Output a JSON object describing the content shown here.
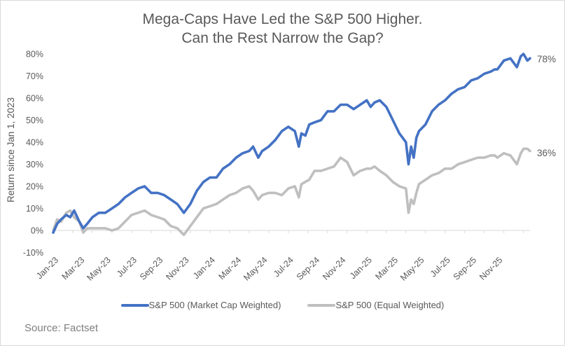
{
  "chart_data": {
    "type": "line",
    "title": [
      "Mega-Caps Have Led the S&P 500 Higher.",
      "Can the Rest Narrow the Gap?"
    ],
    "xlabel": "",
    "ylabel": "Return since Jan 1, 2023",
    "ylim": [
      -10,
      80
    ],
    "yticks": [
      -10,
      0,
      10,
      20,
      30,
      40,
      50,
      60,
      70,
      80
    ],
    "ytick_labels": [
      "-10%",
      "0%",
      "10%",
      "20%",
      "30%",
      "40%",
      "50%",
      "60%",
      "70%",
      "80%"
    ],
    "xlim_months": [
      0,
      36.5
    ],
    "xtick_labels": [
      "Jan-23",
      "Mar-23",
      "May-23",
      "Jul-23",
      "Sep-23",
      "Nov-23",
      "Jan-24",
      "Mar-24",
      "May-24",
      "Jul-24",
      "Sep-24",
      "Nov-24",
      "Jan-25",
      "Mar-25",
      "May-25",
      "Jul-25",
      "Sep-25",
      "Nov-25"
    ],
    "xtick_months": [
      0,
      2,
      4,
      6,
      8,
      10,
      12,
      14,
      16,
      18,
      20,
      22,
      24,
      26,
      28,
      30,
      32,
      34
    ],
    "x_months": [
      0,
      0.3,
      0.6,
      1.0,
      1.3,
      1.6,
      2.0,
      2.3,
      2.6,
      3.0,
      3.5,
      4.0,
      4.5,
      5.0,
      5.5,
      6.0,
      6.5,
      7.0,
      7.5,
      8.0,
      8.5,
      9.0,
      9.5,
      10.0,
      10.5,
      11.0,
      11.5,
      12.0,
      12.5,
      13.0,
      13.5,
      14.0,
      14.5,
      15.0,
      15.3,
      15.7,
      16.0,
      16.5,
      17.0,
      17.5,
      18.0,
      18.5,
      18.8,
      19.0,
      19.3,
      19.6,
      20.0,
      20.5,
      21.0,
      21.5,
      22.0,
      22.5,
      23.0,
      23.5,
      24.0,
      24.3,
      24.6,
      25.0,
      25.5,
      26.0,
      26.5,
      27.0,
      27.2,
      27.4,
      27.6,
      27.8,
      28.0,
      28.5,
      29.0,
      29.5,
      30.0,
      30.5,
      31.0,
      31.5,
      32.0,
      32.5,
      33.0,
      33.5,
      33.8,
      34.0,
      34.5,
      35.0,
      35.5,
      35.8,
      36.0,
      36.3,
      36.5
    ],
    "series": [
      {
        "name": "S&P 500 (Market Cap Weighted)",
        "color": "#4472c4",
        "end_label": "78%",
        "values": [
          -1,
          3,
          5,
          7,
          6,
          9,
          4,
          1,
          3,
          6,
          8,
          8,
          10,
          12,
          15,
          17,
          19,
          20,
          17,
          17,
          16,
          14,
          12,
          8,
          12,
          18,
          22,
          24,
          24,
          28,
          30,
          33,
          35,
          36,
          38,
          33,
          36,
          38,
          41,
          45,
          47,
          45,
          38,
          44,
          43,
          48,
          49,
          50,
          54,
          54,
          57,
          57,
          55,
          57,
          59,
          56,
          58,
          59,
          56,
          50,
          44,
          40,
          30,
          38,
          33,
          42,
          45,
          48,
          54,
          57,
          59,
          62,
          64,
          65,
          68,
          69,
          71,
          72,
          73,
          73,
          77,
          78,
          74,
          79,
          80,
          77,
          78
        ]
      },
      {
        "name": "S&P 500 (Equal Weighted)",
        "color": "#bfbfbf",
        "end_label": "36%",
        "values": [
          0,
          5,
          4,
          8,
          9,
          6,
          4,
          -1,
          1,
          1,
          1,
          1,
          0,
          1,
          4,
          7,
          8,
          9,
          7,
          6,
          5,
          2,
          1,
          -2,
          2,
          6,
          10,
          11,
          12,
          14,
          16,
          17,
          19,
          20,
          18,
          14,
          16,
          17,
          17,
          16,
          19,
          20,
          15,
          21,
          22,
          23,
          27,
          27,
          28,
          29,
          33,
          31,
          25,
          27,
          28,
          28,
          29,
          27,
          25,
          22,
          20,
          19,
          8,
          14,
          12,
          17,
          21,
          23,
          25,
          26,
          28,
          28,
          30,
          31,
          32,
          33,
          33,
          34,
          34,
          33,
          35,
          34,
          30,
          35,
          37,
          37,
          36
        ]
      }
    ]
  },
  "source_text": "Source: Factset"
}
